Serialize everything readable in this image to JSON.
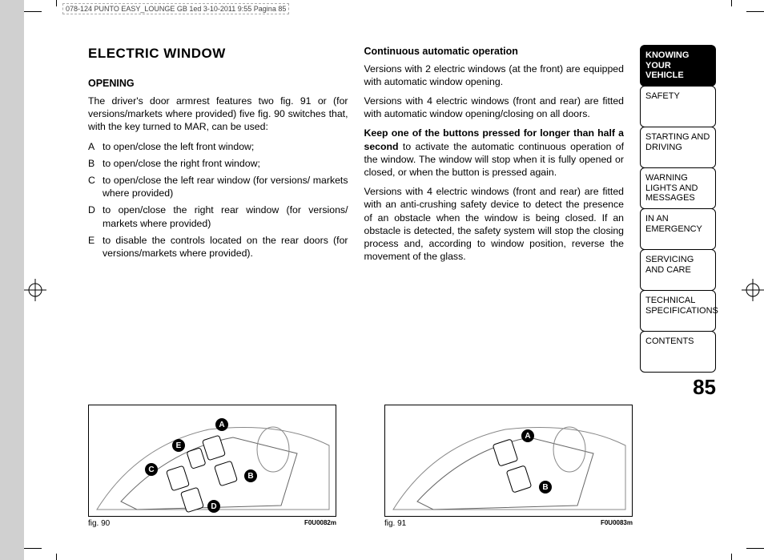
{
  "header_info": "078-124 PUNTO EASY_LOUNGE GB 1ed  3-10-2011  9:55  Pagina 85",
  "main_title": "ELECTRIC WINDOW",
  "section1_title": "OPENING",
  "section1_intro": "The driver's door armrest features two fig. 91 or (for versions/markets where provided) five fig. 90 switches that, with the key turned to MAR, can be used:",
  "list": [
    {
      "letter": "A",
      "text": "to open/close the left front window;"
    },
    {
      "letter": "B",
      "text": "to open/close the right front window;"
    },
    {
      "letter": "C",
      "text": "to open/close the left rear window (for versions/ markets where provided)"
    },
    {
      "letter": "D",
      "text": "to open/close the right rear window (for versions/ markets where provided)"
    },
    {
      "letter": "E",
      "text": "to disable the controls located on the rear doors (for versions/markets where provided)."
    }
  ],
  "section2_title": "Continuous automatic operation",
  "para1": "Versions with 2 electric windows (at the front) are equipped with automatic window opening.",
  "para2": "Versions with 4 electric windows (front and rear) are fitted with automatic window opening/closing on all doors.",
  "para3_bold": "Keep one of the buttons pressed for longer than half a second",
  "para3_rest": " to activate the automatic continuous operation of the window. The window will stop when it is fully opened or closed, or when the button is pressed again.",
  "para4": "Versions with 4 electric windows (front and rear) are fitted with an anti-crushing safety device to detect the presence of an obstacle when the window is being closed. If an obstacle is detected, the safety system will stop the closing process and, according to window position, reverse the movement of the glass.",
  "tabs": [
    {
      "label": "KNOWING YOUR VEHICLE",
      "active": true
    },
    {
      "label": "SAFETY",
      "active": false
    },
    {
      "label": "STARTING AND DRIVING",
      "active": false
    },
    {
      "label": "WARNING LIGHTS AND MESSAGES",
      "active": false
    },
    {
      "label": "IN AN EMERGENCY",
      "active": false
    },
    {
      "label": "SERVICING AND CARE",
      "active": false
    },
    {
      "label": "TECHNICAL SPECIFICATIONS",
      "active": false
    },
    {
      "label": "CONTENTS",
      "active": false
    }
  ],
  "page_number": "85",
  "fig90": {
    "caption": "fig. 90",
    "code": "F0U0082m",
    "callouts": [
      "A",
      "B",
      "C",
      "D",
      "E"
    ]
  },
  "fig91": {
    "caption": "fig. 91",
    "code": "F0U0083m",
    "callouts": [
      "A",
      "B"
    ]
  }
}
